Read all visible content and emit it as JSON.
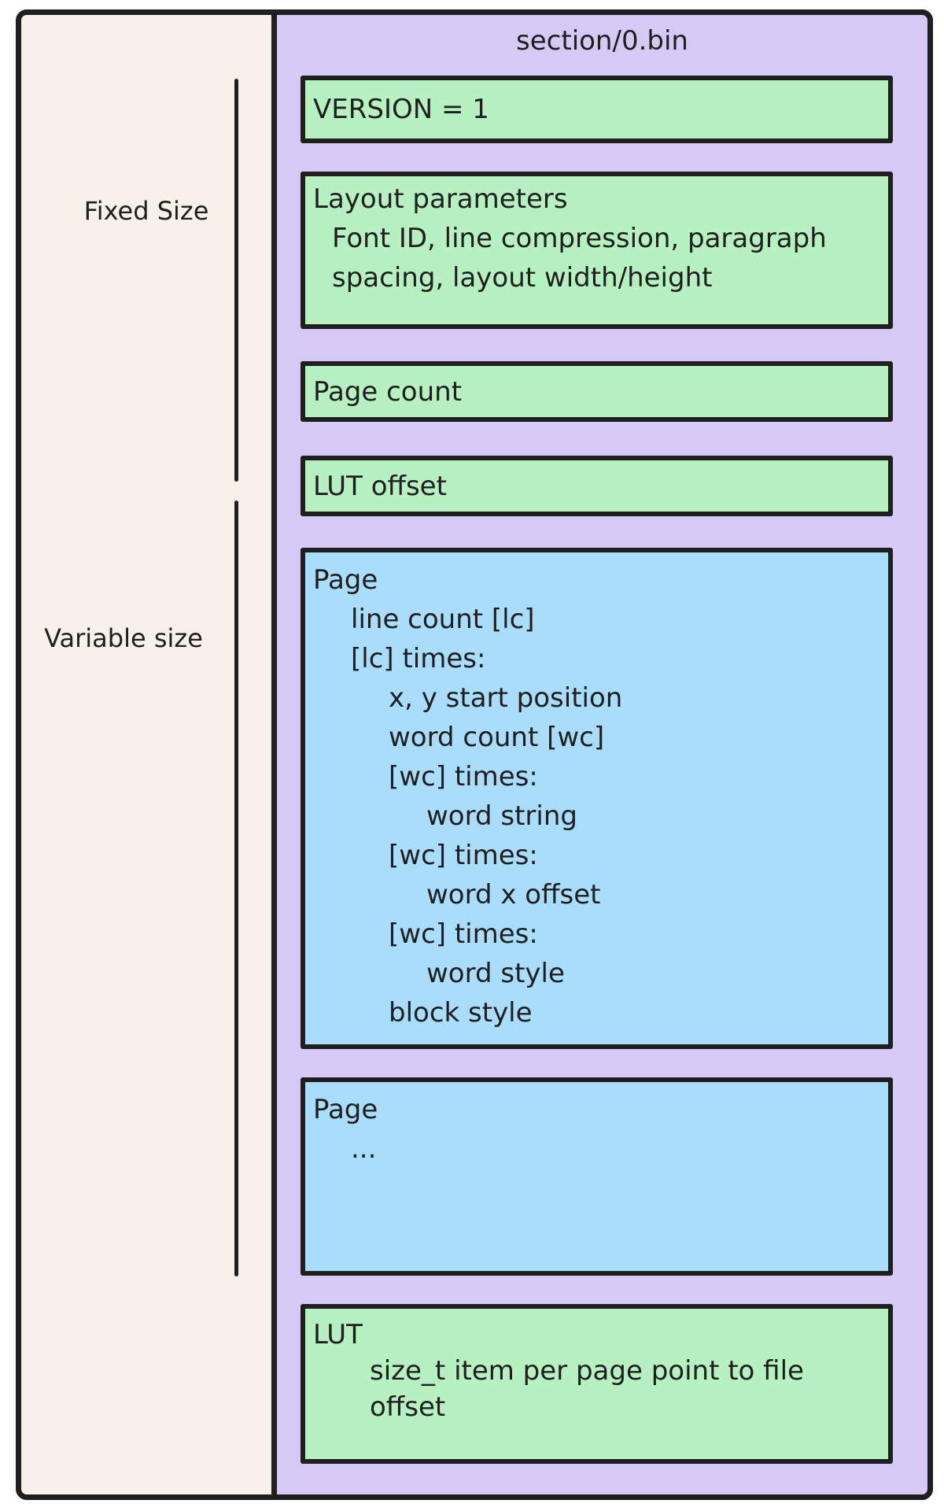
{
  "colors": {
    "background": "#ffffff",
    "frame_fill": "#f7f1e9",
    "stroke": "#1f1f1f",
    "panel_fill": "#d6c9f6",
    "green_fill": "#b7f1c1",
    "blue_fill": "#a9ddfb"
  },
  "side_labels": {
    "fixed": "Fixed Size",
    "variable": "Variable size"
  },
  "panel": {
    "title": "section/0.bin",
    "blocks": [
      {
        "id": "version",
        "color": "green",
        "single": true,
        "lines": [
          {
            "t": "VERSION = 1",
            "i": 0
          }
        ]
      },
      {
        "id": "layout-params",
        "color": "green",
        "single": false,
        "lines": [
          {
            "t": "Layout parameters",
            "i": 0
          },
          {
            "t": "Font ID, line compression, paragraph",
            "i": 1
          },
          {
            "t": "spacing, layout width/height",
            "i": 1
          }
        ]
      },
      {
        "id": "page-count",
        "color": "green",
        "single": true,
        "lines": [
          {
            "t": "Page count",
            "i": 0
          }
        ]
      },
      {
        "id": "lut-offset",
        "color": "green",
        "single": true,
        "lines": [
          {
            "t": "LUT offset",
            "i": 0
          }
        ]
      },
      {
        "id": "page-detail",
        "color": "blue",
        "single": false,
        "lines": [
          {
            "t": "Page",
            "i": 0
          },
          {
            "t": "line count [lc]",
            "i": 2
          },
          {
            "t": "[lc] times:",
            "i": 2
          },
          {
            "t": "x, y start position",
            "i": 4
          },
          {
            "t": "word count [wc]",
            "i": 4
          },
          {
            "t": "[wc] times:",
            "i": 4
          },
          {
            "t": "word string",
            "i": 6
          },
          {
            "t": "[wc] times:",
            "i": 4
          },
          {
            "t": "word x offset",
            "i": 6
          },
          {
            "t": "[wc] times:",
            "i": 4
          },
          {
            "t": "word style",
            "i": 6
          },
          {
            "t": "block style",
            "i": 4
          }
        ]
      },
      {
        "id": "page-more",
        "color": "blue",
        "single": false,
        "lines": [
          {
            "t": "Page",
            "i": 0
          },
          {
            "t": "...",
            "i": 2
          }
        ]
      },
      {
        "id": "lut",
        "color": "green",
        "single": false,
        "lines": [
          {
            "t": "LUT",
            "i": 0
          },
          {
            "t": "size_t item per page point to file",
            "i": 3
          },
          {
            "t": "offset",
            "i": 3
          }
        ]
      }
    ]
  }
}
